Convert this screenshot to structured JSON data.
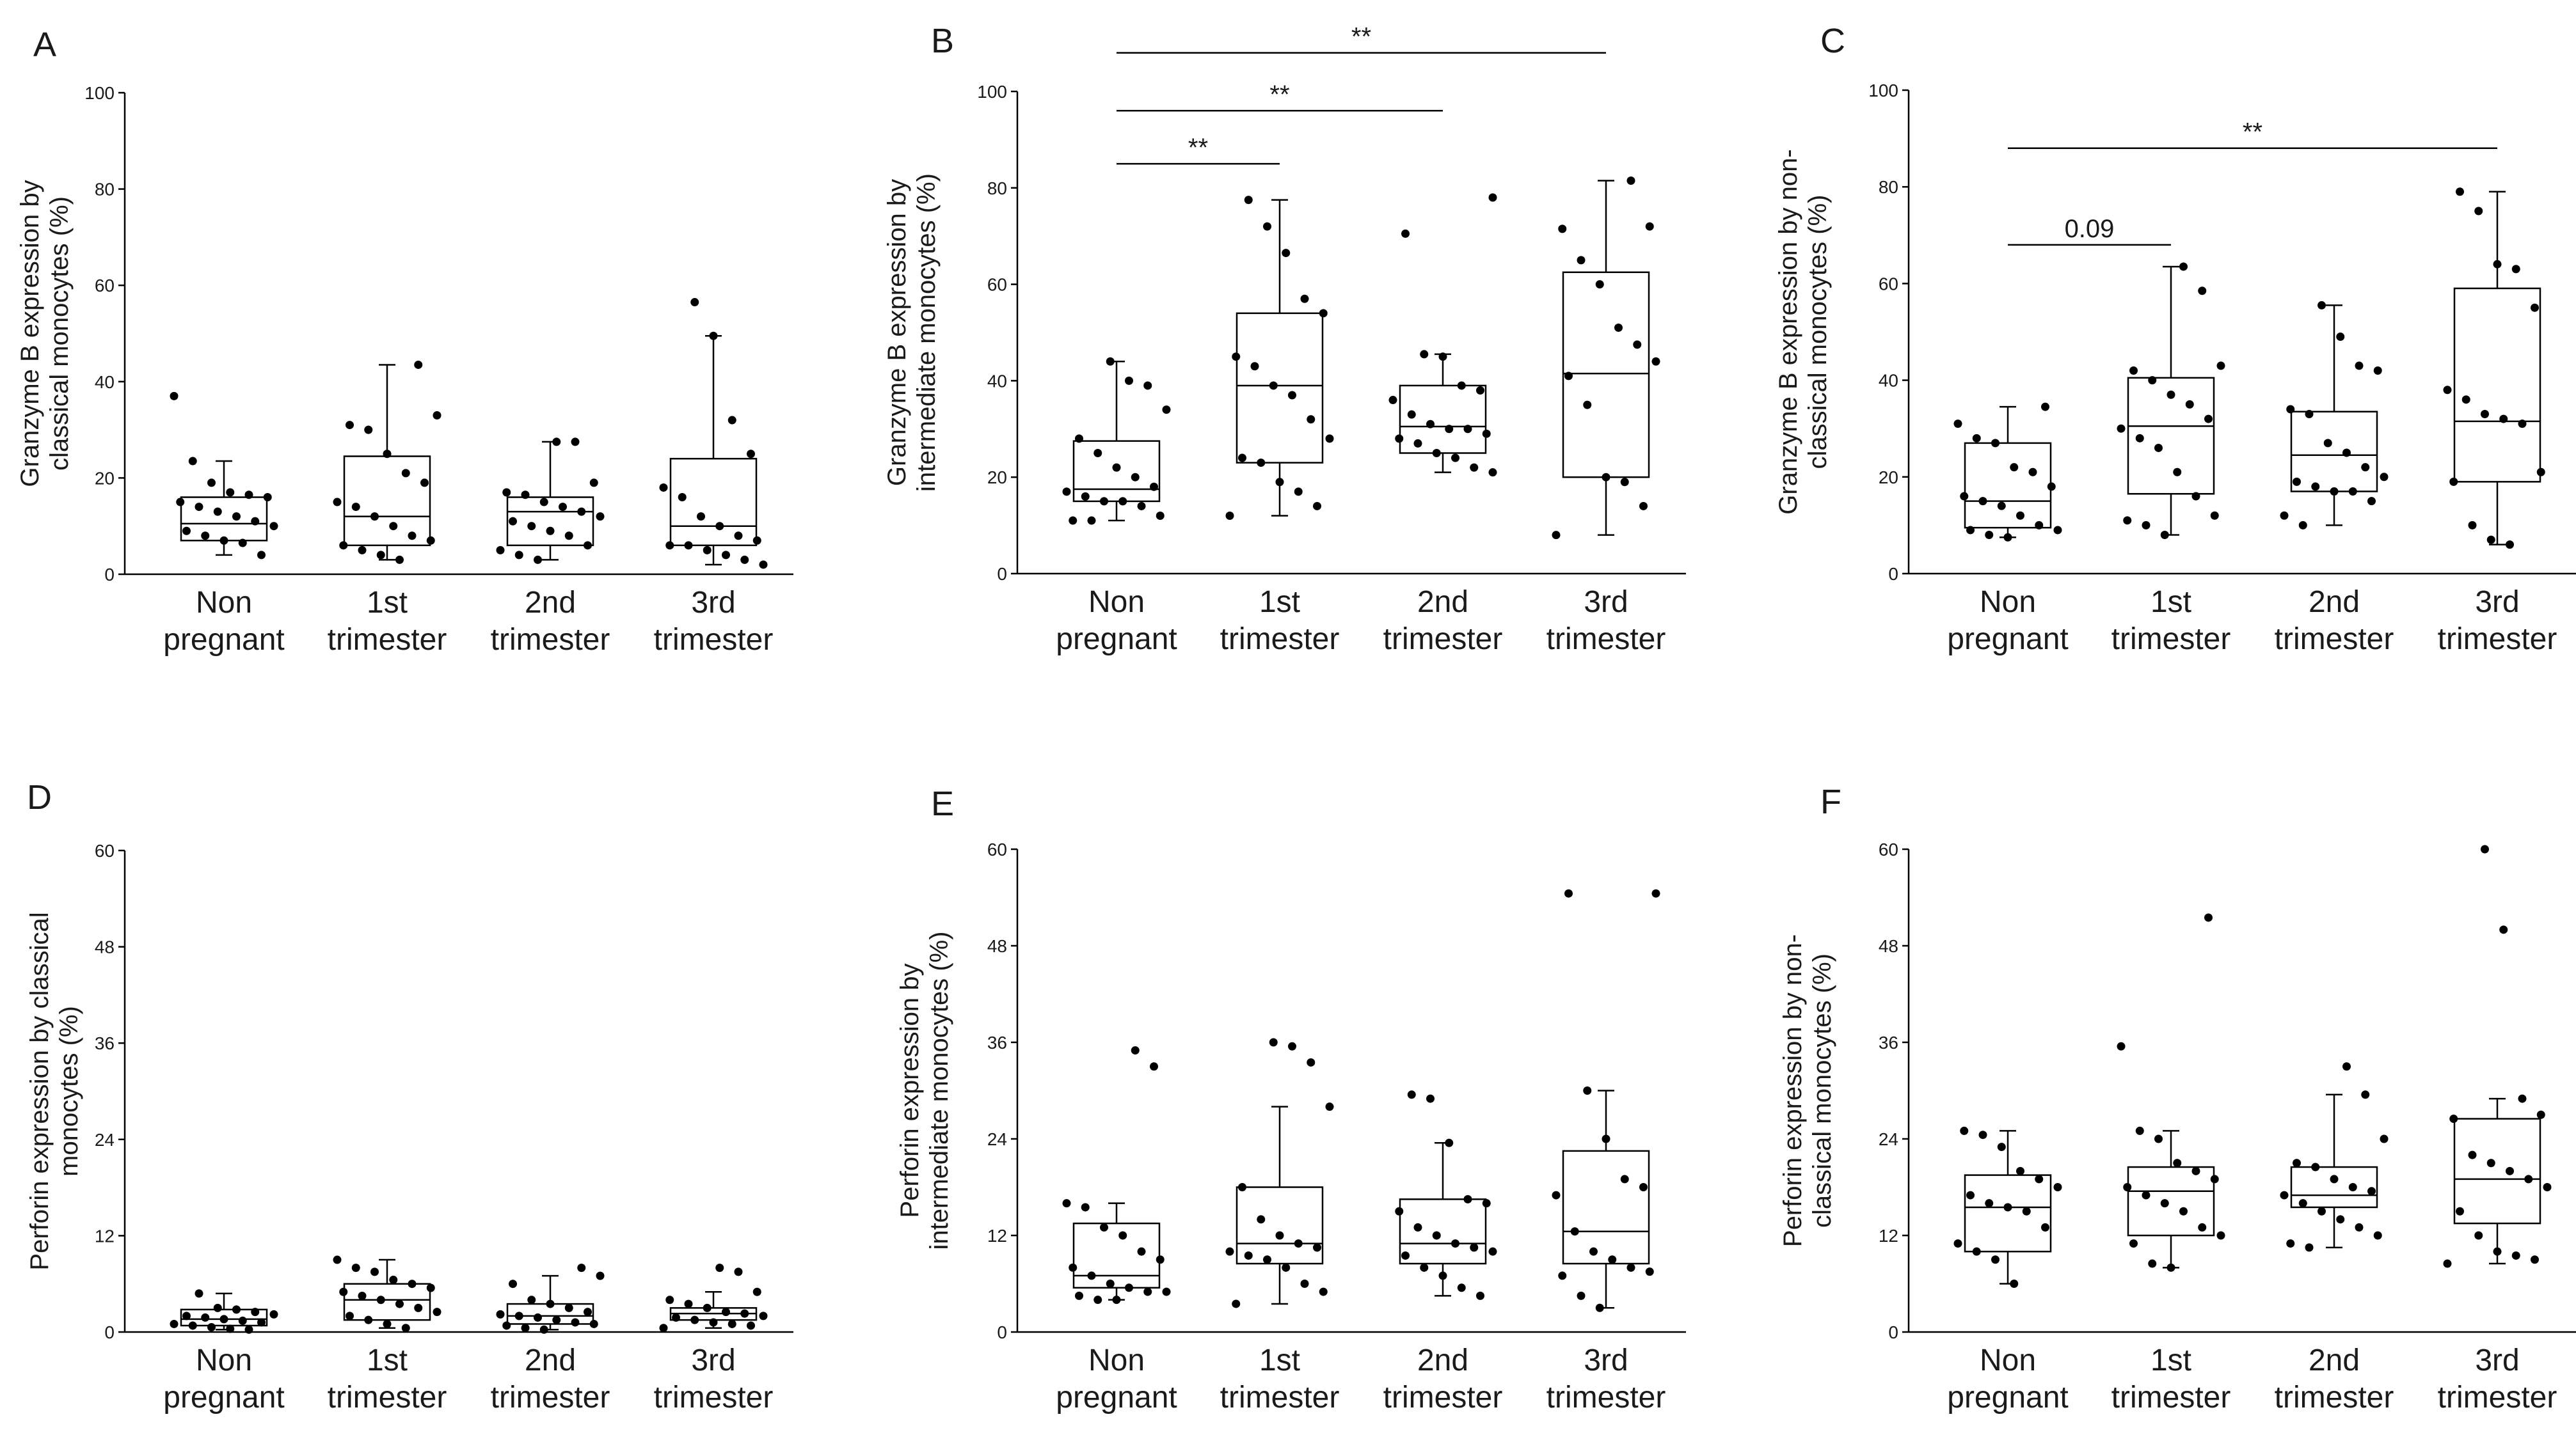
{
  "chart_data": [
    {
      "panel": "A",
      "type": "box",
      "ylabel": [
        "Granzyme B expression by",
        "classical monocytes (%)"
      ],
      "categories": [
        [
          "Non",
          "pregnant"
        ],
        [
          "1st",
          "trimester"
        ],
        [
          "2nd",
          "trimester"
        ],
        [
          "3rd",
          "trimester"
        ]
      ],
      "ylim": [
        0,
        100
      ],
      "yticks": [
        0,
        20,
        40,
        60,
        80,
        100
      ],
      "boxes": [
        {
          "q1": 7,
          "median": 10.5,
          "q3": 16,
          "min": 4,
          "max": 23.5
        },
        {
          "q1": 6,
          "median": 12,
          "q3": 24.5,
          "min": 3,
          "max": 43.5
        },
        {
          "q1": 6,
          "median": 13,
          "q3": 16,
          "min": 3,
          "max": 27.5
        },
        {
          "q1": 6,
          "median": 10,
          "q3": 24,
          "min": 2,
          "max": 49.5
        }
      ],
      "points": [
        [
          37,
          23.5,
          19,
          17,
          16.5,
          16,
          15,
          14,
          13,
          12,
          11,
          10,
          9,
          8,
          7,
          6.5,
          4
        ],
        [
          43.5,
          33,
          31,
          30,
          25,
          21,
          19,
          15,
          14,
          12,
          10,
          8,
          7,
          6,
          5,
          4,
          3
        ],
        [
          27.5,
          27.5,
          19,
          17,
          16.5,
          15,
          14,
          13,
          12,
          11,
          10,
          9,
          8,
          6,
          5,
          4,
          3
        ],
        [
          56.5,
          49.5,
          32,
          25,
          18,
          16,
          12,
          10,
          8,
          7,
          6,
          6,
          5,
          4,
          3,
          2
        ]
      ],
      "significance": []
    },
    {
      "panel": "B",
      "type": "box",
      "ylabel": [
        "Granzyme B expression by",
        "intermediate monocytes (%)"
      ],
      "categories": [
        [
          "Non",
          "pregnant"
        ],
        [
          "1st",
          "trimester"
        ],
        [
          "2nd",
          "trimester"
        ],
        [
          "3rd",
          "trimester"
        ]
      ],
      "ylim": [
        0,
        100
      ],
      "yticks": [
        0,
        20,
        40,
        60,
        80,
        100
      ],
      "boxes": [
        {
          "q1": 15,
          "median": 17.5,
          "q3": 27.5,
          "min": 11,
          "max": 44
        },
        {
          "q1": 23,
          "median": 39,
          "q3": 54,
          "min": 12,
          "max": 77.5
        },
        {
          "q1": 25,
          "median": 30.5,
          "q3": 39,
          "min": 21,
          "max": 45.5
        },
        {
          "q1": 20,
          "median": 41.5,
          "q3": 62.5,
          "min": 8,
          "max": 81.5
        }
      ],
      "points": [
        [
          44,
          40,
          39,
          34,
          28,
          25,
          22,
          20,
          18,
          17,
          16,
          15,
          15,
          14,
          12,
          11,
          11
        ],
        [
          77.5,
          72,
          66.5,
          57,
          54,
          45,
          43,
          39,
          37,
          32,
          28,
          24,
          23,
          19,
          17,
          14,
          12
        ],
        [
          78,
          70.5,
          45.5,
          45,
          39,
          38,
          36,
          33,
          31,
          30,
          30,
          29,
          28,
          27,
          25,
          24,
          22,
          21
        ],
        [
          81.5,
          72,
          71.5,
          65,
          60,
          51,
          47.5,
          44,
          41,
          35,
          20,
          19,
          14,
          8
        ]
      ],
      "significance": [
        {
          "from": 0,
          "to": 1,
          "label": "**",
          "level": 85
        },
        {
          "from": 0,
          "to": 2,
          "label": "**",
          "level": 96
        },
        {
          "from": 0,
          "to": 3,
          "label": "**",
          "level": 108
        }
      ]
    },
    {
      "panel": "C",
      "type": "box",
      "ylabel": [
        "Granzyme B expression by non-",
        "classical monocytes (%)"
      ],
      "categories": [
        [
          "Non",
          "pregnant"
        ],
        [
          "1st",
          "trimester"
        ],
        [
          "2nd",
          "trimester"
        ],
        [
          "3rd",
          "trimester"
        ]
      ],
      "ylim": [
        0,
        100
      ],
      "yticks": [
        0,
        20,
        40,
        60,
        80,
        100
      ],
      "boxes": [
        {
          "q1": 9.5,
          "median": 15,
          "q3": 27,
          "min": 7.5,
          "max": 34.5
        },
        {
          "q1": 16.5,
          "median": 30.5,
          "q3": 40.5,
          "min": 8,
          "max": 63.5
        },
        {
          "q1": 17,
          "median": 24.5,
          "q3": 33.5,
          "min": 10,
          "max": 55.5
        },
        {
          "q1": 19,
          "median": 31.5,
          "q3": 59,
          "min": 6,
          "max": 79
        }
      ],
      "points": [
        [
          34.5,
          31,
          28,
          27,
          22,
          21,
          18,
          16,
          15,
          14,
          12,
          10,
          9,
          9,
          8,
          7.5
        ],
        [
          63.5,
          58.5,
          43,
          42,
          40,
          37,
          35,
          32,
          30,
          28,
          26,
          21,
          16,
          12,
          11,
          10,
          8
        ],
        [
          55.5,
          49,
          43,
          42,
          34,
          33,
          27,
          25,
          22,
          20,
          19,
          18,
          17,
          17,
          15,
          12,
          10
        ],
        [
          79,
          75,
          64,
          63,
          55,
          38,
          36,
          33,
          32,
          31,
          21,
          19,
          10,
          7,
          6
        ]
      ],
      "significance": [
        {
          "from": 0,
          "to": 1,
          "label": "0.09",
          "level": 68
        },
        {
          "from": 0,
          "to": 3,
          "label": "**",
          "level": 88
        }
      ]
    },
    {
      "panel": "D",
      "type": "box",
      "ylabel": [
        "Perforin expression by classical",
        "monocytes (%)"
      ],
      "categories": [
        [
          "Non",
          "pregnant"
        ],
        [
          "1st",
          "trimester"
        ],
        [
          "2nd",
          "trimester"
        ],
        [
          "3rd",
          "trimester"
        ]
      ],
      "ylim": [
        0,
        60
      ],
      "yticks": [
        0,
        12,
        24,
        36,
        48,
        60
      ],
      "boxes": [
        {
          "q1": 0.8,
          "median": 1.6,
          "q3": 2.8,
          "min": 0.3,
          "max": 4.8
        },
        {
          "q1": 1.5,
          "median": 4,
          "q3": 6,
          "min": 0.5,
          "max": 9
        },
        {
          "q1": 1,
          "median": 2,
          "q3": 3.5,
          "min": 0.3,
          "max": 7
        },
        {
          "q1": 1.5,
          "median": 2.3,
          "q3": 3,
          "min": 0.5,
          "max": 5
        }
      ],
      "points": [
        [
          4.8,
          3,
          2.8,
          2.5,
          2.2,
          2,
          1.8,
          1.6,
          1.4,
          1.2,
          1,
          0.8,
          0.6,
          0.4,
          0.3
        ],
        [
          9,
          8,
          7.5,
          6.5,
          6,
          5.5,
          5,
          4.5,
          4,
          3.5,
          3,
          2.5,
          2,
          1.5,
          1,
          0.5
        ],
        [
          8,
          7,
          6,
          4,
          3.5,
          3,
          2.5,
          2.2,
          2,
          1.8,
          1.5,
          1.2,
          1,
          0.8,
          0.5,
          0.3
        ],
        [
          8,
          7.5,
          5,
          4,
          3.5,
          3,
          2.5,
          2.3,
          2,
          1.8,
          1.5,
          1.2,
          1,
          0.8,
          0.5
        ]
      ],
      "significance": []
    },
    {
      "panel": "E",
      "type": "box",
      "ylabel": [
        "Perforin expression by",
        "intermediate monocytes (%)"
      ],
      "categories": [
        [
          "Non",
          "pregnant"
        ],
        [
          "1st",
          "trimester"
        ],
        [
          "2nd",
          "trimester"
        ],
        [
          "3rd",
          "trimester"
        ]
      ],
      "ylim": [
        0,
        60
      ],
      "yticks": [
        0,
        12,
        24,
        36,
        48,
        60
      ],
      "boxes": [
        {
          "q1": 5.5,
          "median": 7,
          "q3": 13.5,
          "min": 4,
          "max": 16
        },
        {
          "q1": 8.5,
          "median": 11,
          "q3": 18,
          "min": 3.5,
          "max": 28
        },
        {
          "q1": 8.5,
          "median": 11,
          "q3": 16.5,
          "min": 4.5,
          "max": 23.5
        },
        {
          "q1": 8.5,
          "median": 12.5,
          "q3": 22.5,
          "min": 3,
          "max": 30
        }
      ],
      "points": [
        [
          35,
          33,
          16,
          15.5,
          13,
          12,
          10,
          9,
          8,
          7,
          6,
          5.5,
          5,
          5,
          4.5,
          4,
          4
        ],
        [
          36,
          35.5,
          33.5,
          28,
          18,
          14,
          12,
          11,
          10.5,
          10,
          9.5,
          9,
          8,
          6,
          5,
          3.5
        ],
        [
          29.5,
          29,
          23.5,
          16.5,
          16,
          15,
          13,
          12,
          11,
          10.5,
          10,
          9.5,
          8,
          7,
          5.5,
          4.5
        ],
        [
          54.5,
          54.5,
          30,
          24,
          19,
          18,
          17,
          12.5,
          10,
          9,
          8,
          7.5,
          7,
          4.5,
          3
        ]
      ],
      "significance": []
    },
    {
      "panel": "F",
      "type": "box",
      "ylabel": [
        "Perforin expression by non-",
        "classical monocytes (%)"
      ],
      "categories": [
        [
          "Non",
          "pregnant"
        ],
        [
          "1st",
          "trimester"
        ],
        [
          "2nd",
          "trimester"
        ],
        [
          "3rd",
          "trimester"
        ]
      ],
      "ylim": [
        0,
        60
      ],
      "yticks": [
        0,
        12,
        24,
        36,
        48,
        60
      ],
      "boxes": [
        {
          "q1": 10,
          "median": 15.5,
          "q3": 19.5,
          "min": 6,
          "max": 25
        },
        {
          "q1": 12,
          "median": 17.5,
          "q3": 20.5,
          "min": 8,
          "max": 25
        },
        {
          "q1": 15.5,
          "median": 17,
          "q3": 20.5,
          "min": 10.5,
          "max": 29.5
        },
        {
          "q1": 13.5,
          "median": 19,
          "q3": 26.5,
          "min": 8.5,
          "max": 29
        }
      ],
      "points": [
        [
          25,
          24.5,
          23,
          20,
          19,
          18,
          17,
          16,
          15.5,
          15,
          13,
          11,
          10,
          9,
          6
        ],
        [
          51.5,
          35.5,
          25,
          24,
          21,
          20,
          19,
          18,
          17,
          16,
          15,
          13,
          12,
          11,
          8.5,
          8
        ],
        [
          33,
          29.5,
          24,
          21,
          20.5,
          19,
          18,
          17.5,
          17,
          16,
          15,
          14,
          13,
          12,
          11,
          10.5
        ],
        [
          60,
          50,
          29,
          27,
          26.5,
          22,
          21,
          20,
          19,
          18,
          15,
          12,
          10,
          9.5,
          9,
          8.5
        ]
      ],
      "significance": []
    }
  ]
}
